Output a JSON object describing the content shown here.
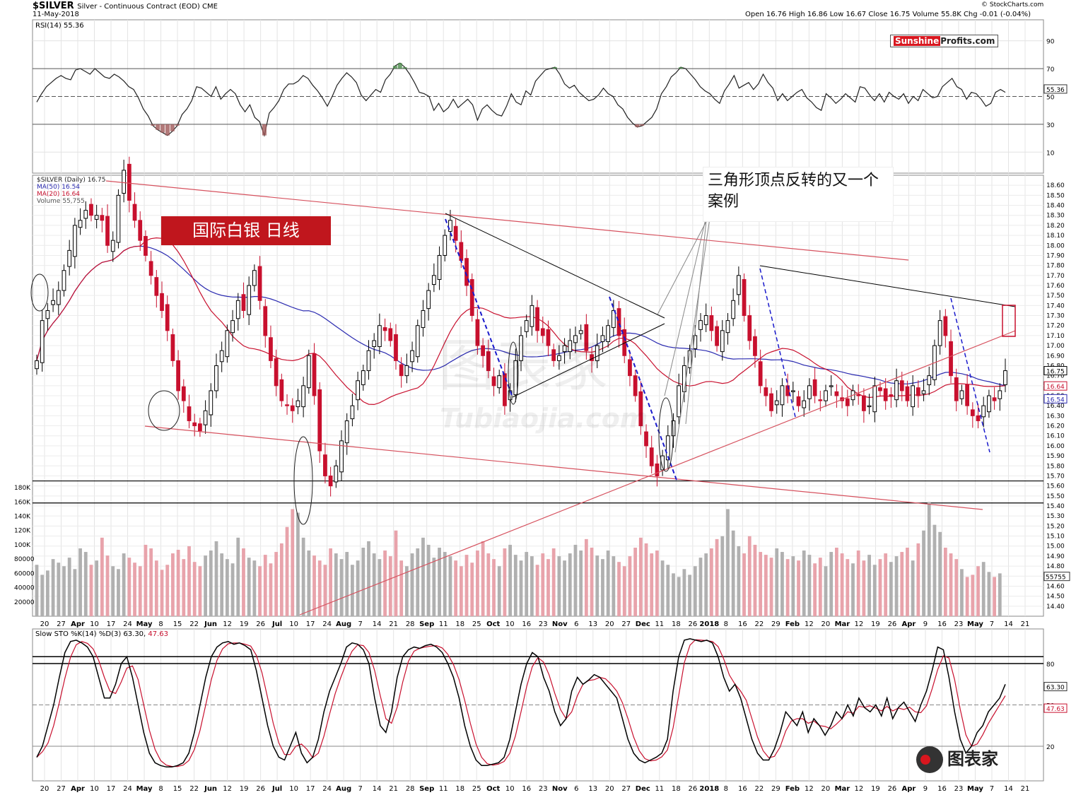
{
  "header": {
    "symbol": "$SILVER",
    "symbol_desc": "Silver - Continuous Contract (EOD)  CME",
    "date": "11-May-2018",
    "ohlc": "Open 16.76  High 16.86  Low 16.67  Close 16.75  Volume 55.8K  Chg -0.01 (-0.04%)",
    "source": "© StockCharts.com"
  },
  "logo": {
    "part1": "Sunshine",
    "part2": "Profits.com"
  },
  "title_box": "国际白银  日线",
  "annotation": "三角形顶点反转的又一个案例",
  "watermark": {
    "cn": "图表家",
    "en": "Tubiaojia.com"
  },
  "colors": {
    "up": "#000000",
    "down": "#c8102e",
    "ma50": "#2a2ab0",
    "ma20": "#c8102e",
    "vol_up": "#b0b0b0",
    "vol_down": "#e8a3ab",
    "trend_red": "#d6515e",
    "blue_dash": "#1a1acc"
  },
  "chart_data": [
    {
      "type": "line",
      "name": "rsi_panel",
      "label": "RSI(14) 55.36",
      "last": 55.36,
      "last_label": "55.36",
      "ylim": [
        0,
        100
      ],
      "ticks": [
        "90",
        "70",
        "50",
        "30",
        "10"
      ],
      "tick_values": [
        90,
        70,
        50,
        30,
        10
      ],
      "values": [
        46,
        52,
        57,
        60,
        63,
        65,
        63,
        62,
        69,
        70,
        68,
        66,
        70,
        67,
        64,
        63,
        66,
        64,
        61,
        57,
        55,
        49,
        41,
        36,
        29,
        26,
        24,
        22,
        25,
        29,
        37,
        41,
        47,
        57,
        56,
        53,
        50,
        57,
        48,
        52,
        55,
        52,
        44,
        39,
        44,
        35,
        32,
        22,
        38,
        42,
        47,
        55,
        59,
        59,
        61,
        65,
        63,
        58,
        54,
        49,
        43,
        50,
        58,
        63,
        67,
        64,
        60,
        51,
        47,
        51,
        55,
        53,
        62,
        66,
        72,
        74,
        71,
        66,
        60,
        53,
        52,
        50,
        40,
        45,
        39,
        42,
        48,
        42,
        45,
        48,
        44,
        33,
        41,
        44,
        40,
        37,
        36,
        43,
        52,
        46,
        44,
        54,
        51,
        61,
        65,
        69,
        70,
        71,
        66,
        59,
        56,
        58,
        53,
        50,
        47,
        48,
        51,
        56,
        52,
        50,
        44,
        41,
        35,
        31,
        28,
        29,
        32,
        35,
        41,
        52,
        57,
        64,
        67,
        71,
        70,
        66,
        62,
        57,
        54,
        52,
        48,
        45,
        54,
        59,
        65,
        56,
        58,
        60,
        55,
        59,
        66,
        60,
        56,
        47,
        52,
        47,
        50,
        53,
        55,
        49,
        46,
        42,
        40,
        52,
        49,
        45,
        48,
        52,
        49,
        46,
        57,
        56,
        51,
        47,
        52,
        46,
        53,
        50,
        48,
        52,
        45,
        50,
        47,
        55,
        52,
        49,
        50,
        57,
        60,
        63,
        57,
        55,
        48,
        53,
        52,
        48,
        43,
        45,
        53,
        55,
        53
      ]
    },
    {
      "type": "candlestick",
      "name": "price_panel",
      "legend": [
        "$SILVER (Daily) 16.75",
        "MA(50) 16.54",
        "MA(20) 16.64",
        "Volume 55,755"
      ],
      "last": 16.75,
      "ma50_last": 16.54,
      "ma20_last": 16.64,
      "last_label": "16.75",
      "ma20_label": "16.64",
      "ma50_label": "16.54",
      "ylim": [
        14.3,
        18.7
      ],
      "y_ticks": [
        "18.60",
        "18.50",
        "18.40",
        "18.30",
        "18.20",
        "18.10",
        "18.00",
        "17.90",
        "17.80",
        "17.70",
        "17.60",
        "17.50",
        "17.40",
        "17.30",
        "17.20",
        "17.10",
        "17.00",
        "16.90",
        "16.80",
        "16.70",
        "16.60",
        "16.50",
        "16.40",
        "16.30",
        "16.20",
        "16.10",
        "16.00",
        "15.90",
        "15.80",
        "15.70",
        "15.60",
        "15.50",
        "15.40",
        "15.30",
        "15.20",
        "15.10",
        "15.00",
        "14.90",
        "14.80",
        "14.70",
        "14.60",
        "14.50",
        "14.40"
      ],
      "closes": [
        16.85,
        17.25,
        17.35,
        17.45,
        17.55,
        17.75,
        17.95,
        18.2,
        18.25,
        18.35,
        18.3,
        18.3,
        18.25,
        18.0,
        18.05,
        18.5,
        18.75,
        18.45,
        18.25,
        18.05,
        17.9,
        17.7,
        17.5,
        17.35,
        17.15,
        16.85,
        16.55,
        16.45,
        16.25,
        16.2,
        16.15,
        16.35,
        16.55,
        16.8,
        16.95,
        17.15,
        17.25,
        17.45,
        17.35,
        17.6,
        17.75,
        17.45,
        17.1,
        16.85,
        16.6,
        16.45,
        16.4,
        16.35,
        16.45,
        16.6,
        16.9,
        16.5,
        15.95,
        15.7,
        15.6,
        15.8,
        16.05,
        16.25,
        16.4,
        16.65,
        16.75,
        16.95,
        17.05,
        17.2,
        17.15,
        17.05,
        16.85,
        16.7,
        16.8,
        16.95,
        17.2,
        17.35,
        17.55,
        17.7,
        17.9,
        18.1,
        18.25,
        18.05,
        17.85,
        17.6,
        17.3,
        17.0,
        16.9,
        16.75,
        16.6,
        16.7,
        16.4,
        16.55,
        16.85,
        17.1,
        17.25,
        17.4,
        17.15,
        17.1,
        17.0,
        16.85,
        16.9,
        17.0,
        17.05,
        17.1,
        17.15,
        16.95,
        16.85,
        17.0,
        17.1,
        17.2,
        17.35,
        17.1,
        16.9,
        16.7,
        16.5,
        16.2,
        16.0,
        15.8,
        15.7,
        15.9,
        16.1,
        16.25,
        16.6,
        16.8,
        16.95,
        17.1,
        17.25,
        17.3,
        17.15,
        17.0,
        17.15,
        17.25,
        17.45,
        17.7,
        17.3,
        17.05,
        16.9,
        16.6,
        16.5,
        16.35,
        16.45,
        16.6,
        16.5,
        16.55,
        16.4,
        16.45,
        16.6,
        16.5,
        16.45,
        16.55,
        16.6,
        16.5,
        16.45,
        16.4,
        16.55,
        16.5,
        16.35,
        16.4,
        16.6,
        16.55,
        16.45,
        16.5,
        16.65,
        16.55,
        16.45,
        16.6,
        16.5,
        16.55,
        16.7,
        17.0,
        17.25,
        17.1,
        16.7,
        16.45,
        16.55,
        16.4,
        16.3,
        16.25,
        16.4,
        16.5,
        16.45,
        16.55,
        16.75
      ]
    },
    {
      "type": "bar",
      "name": "volume_panel",
      "ylim": [
        0,
        190000
      ],
      "y_ticks": [
        "180K",
        "160K",
        "140K",
        "120K",
        "100K",
        "80000",
        "60000",
        "40000",
        "20000"
      ],
      "y_tick_values": [
        180000,
        160000,
        140000,
        120000,
        100000,
        80000,
        60000,
        40000,
        20000
      ],
      "last_label": "55755",
      "values_k": [
        72,
        58,
        64,
        80,
        75,
        70,
        82,
        66,
        95,
        90,
        72,
        78,
        110,
        85,
        70,
        66,
        88,
        82,
        75,
        70,
        100,
        95,
        78,
        65,
        72,
        88,
        93,
        80,
        98,
        76,
        70,
        85,
        92,
        105,
        88,
        80,
        74,
        110,
        95,
        82,
        78,
        70,
        86,
        74,
        90,
        102,
        125,
        150,
        145,
        110,
        92,
        85,
        78,
        72,
        95,
        88,
        80,
        90,
        72,
        78,
        96,
        105,
        88,
        80,
        92,
        84,
        120,
        78,
        70,
        88,
        95,
        110,
        100,
        82,
        96,
        90,
        84,
        78,
        70,
        86,
        75,
        92,
        105,
        88,
        80,
        70,
        95,
        100,
        86,
        78,
        90,
        84,
        72,
        88,
        80,
        95,
        84,
        78,
        88,
        100,
        92,
        108,
        96,
        85,
        80,
        92,
        84,
        76,
        70,
        84,
        96,
        110,
        102,
        88,
        92,
        78,
        72,
        60,
        55,
        66,
        58,
        70,
        82,
        88,
        95,
        108,
        112,
        150,
        120,
        98,
        88,
        112,
        100,
        90,
        86,
        82,
        95,
        90,
        80,
        84,
        78,
        92,
        86,
        74,
        82,
        70,
        90,
        96,
        88,
        80,
        74,
        92,
        78,
        86,
        72,
        80,
        88,
        76,
        84,
        90,
        96,
        78,
        102,
        120,
        160,
        128,
        118,
        96,
        88,
        80,
        66,
        55,
        58,
        70,
        76,
        62,
        55,
        60
      ]
    },
    {
      "type": "line",
      "name": "stochastic_panel",
      "label": "Slow STO %K(14) %D(3) 63.30, 47.63",
      "k_last": 63.3,
      "d_last": 47.63,
      "k_last_label": "63.30",
      "d_last_label": "47.63",
      "ylim": [
        0,
        100
      ],
      "ticks": [
        "80",
        "50",
        "20"
      ],
      "tick_values": [
        80,
        50,
        20
      ],
      "k": [
        12,
        20,
        35,
        50,
        70,
        88,
        96,
        97,
        95,
        92,
        85,
        70,
        55,
        55,
        65,
        80,
        85,
        70,
        50,
        30,
        15,
        8,
        6,
        5,
        5,
        6,
        8,
        15,
        30,
        50,
        70,
        85,
        92,
        95,
        96,
        94,
        95,
        93,
        90,
        75,
        55,
        35,
        20,
        12,
        10,
        20,
        30,
        15,
        8,
        12,
        25,
        45,
        60,
        70,
        80,
        92,
        95,
        94,
        90,
        80,
        55,
        35,
        30,
        45,
        70,
        85,
        90,
        92,
        91,
        93,
        94,
        92,
        88,
        80,
        70,
        55,
        35,
        20,
        10,
        6,
        6,
        7,
        8,
        12,
        25,
        45,
        65,
        80,
        88,
        85,
        70,
        60,
        45,
        35,
        40,
        60,
        70,
        65,
        68,
        72,
        70,
        65,
        60,
        55,
        40,
        25,
        15,
        10,
        8,
        10,
        12,
        15,
        25,
        60,
        85,
        97,
        98,
        97,
        96,
        97,
        95,
        85,
        70,
        60,
        65,
        55,
        40,
        25,
        15,
        10,
        10,
        18,
        30,
        45,
        40,
        35,
        45,
        30,
        40,
        35,
        28,
        35,
        45,
        40,
        50,
        42,
        55,
        48,
        45,
        50,
        42,
        55,
        40,
        48,
        52,
        45,
        38,
        50,
        60,
        75,
        92,
        90,
        70,
        45,
        25,
        15,
        20,
        30,
        35,
        45,
        50,
        55,
        65
      ]
    }
  ],
  "x_axis": {
    "labels": [
      "20",
      "27",
      "Apr",
      "10",
      "17",
      "24",
      "May",
      "8",
      "15",
      "22",
      "Jun",
      "12",
      "19",
      "26",
      "Jul",
      "10",
      "17",
      "24",
      "Aug",
      "7",
      "14",
      "21",
      "28",
      "Sep",
      "11",
      "18",
      "25",
      "Oct",
      "10",
      "16",
      "23",
      "Nov",
      "6",
      "13",
      "20",
      "27",
      "Dec",
      "11",
      "18",
      "26",
      "2018",
      "8",
      "16",
      "22",
      "29",
      "Feb",
      "12",
      "20",
      "Mar",
      "12",
      "19",
      "26",
      "Apr",
      "9",
      "16",
      "23",
      "May",
      "7",
      "14",
      "21"
    ],
    "bold": [
      "Apr",
      "May",
      "Jun",
      "Jul",
      "Aug",
      "Sep",
      "Oct",
      "Nov",
      "Dec",
      "2018",
      "Feb",
      "Mar"
    ]
  }
}
